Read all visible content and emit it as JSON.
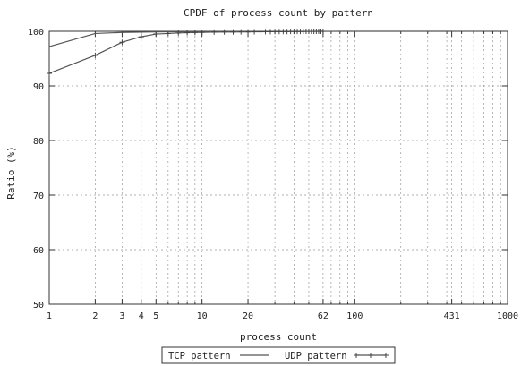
{
  "chart_data": {
    "type": "line",
    "title": "CPDF of process count by pattern",
    "xlabel": "process count",
    "ylabel": "Ratio (%)",
    "xscale": "log",
    "xlim": [
      1,
      1000
    ],
    "ylim": [
      50,
      100
    ],
    "xticks": [
      1,
      2,
      3,
      4,
      5,
      10,
      20,
      62,
      100,
      431,
      1000
    ],
    "xtick_labels": [
      "1",
      "2",
      "3",
      "4",
      "5",
      "10",
      "20",
      "62",
      "100",
      "431",
      "1000"
    ],
    "yticks": [
      50,
      60,
      70,
      80,
      90,
      100
    ],
    "ytick_labels": [
      "50",
      "60",
      "70",
      "80",
      "90",
      "100"
    ],
    "x_gridlines": [
      1,
      2,
      3,
      4,
      5,
      6,
      7,
      8,
      9,
      10,
      20,
      30,
      40,
      50,
      62,
      70,
      80,
      90,
      100,
      200,
      300,
      400,
      431,
      500,
      600,
      700,
      800,
      900
    ],
    "grid": true,
    "legend": "bottom-center, boxed",
    "series": [
      {
        "name": "TCP pattern",
        "marker": "none",
        "x": [
          1,
          2,
          3,
          5,
          10,
          20,
          62,
          100,
          431
        ],
        "y": [
          97.2,
          99.6,
          99.8,
          99.9,
          99.95,
          99.97,
          99.99,
          100,
          100
        ]
      },
      {
        "name": "UDP pattern",
        "marker": "plus",
        "x": [
          1,
          2,
          3,
          4,
          5,
          6,
          7,
          8,
          9,
          10,
          12,
          14,
          16,
          18,
          20,
          22,
          24,
          26,
          28,
          30,
          32,
          34,
          36,
          38,
          40,
          42,
          44,
          46,
          48,
          50,
          52,
          54,
          56,
          58,
          60,
          62
        ],
        "y": [
          92.3,
          95.6,
          98.0,
          99.0,
          99.5,
          99.6,
          99.7,
          99.75,
          99.8,
          99.82,
          99.85,
          99.87,
          99.88,
          99.89,
          99.9,
          99.91,
          99.92,
          99.93,
          99.94,
          99.95,
          99.95,
          99.96,
          99.96,
          99.97,
          99.97,
          99.98,
          99.98,
          99.98,
          99.99,
          99.99,
          99.99,
          99.99,
          100,
          100,
          100,
          100
        ]
      }
    ]
  }
}
